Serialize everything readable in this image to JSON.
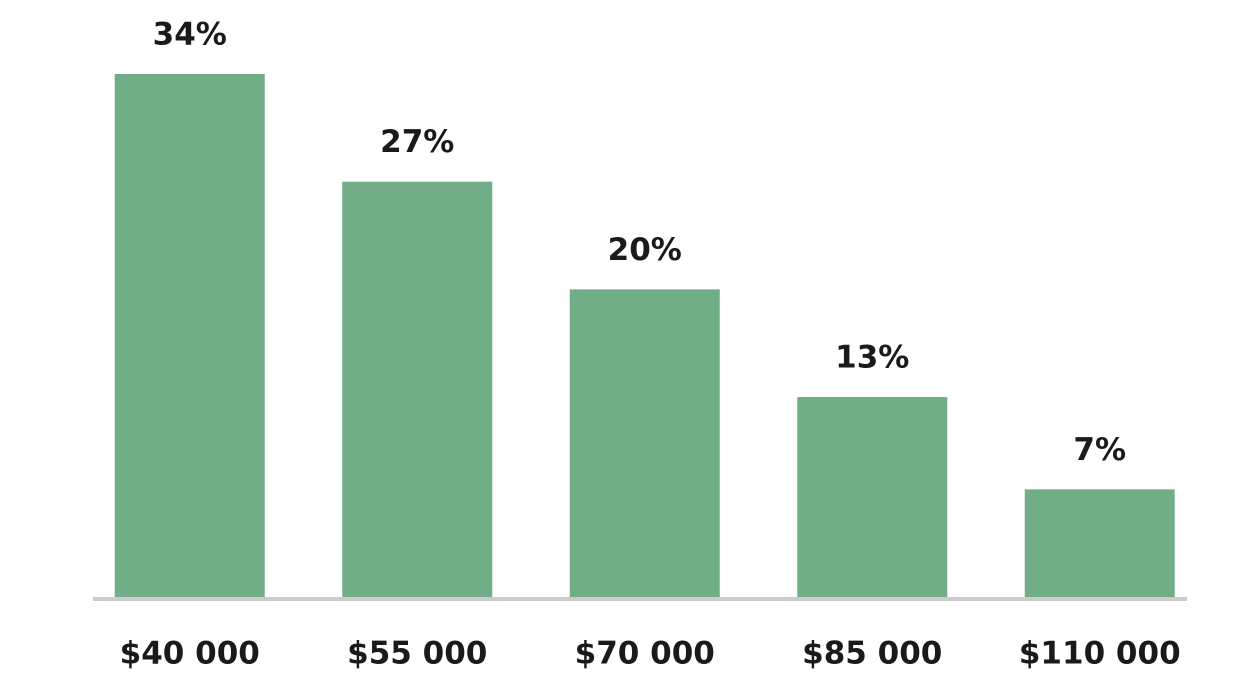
{
  "chart_data": {
    "type": "bar",
    "categories": [
      "$40 000",
      "$55 000",
      "$70 000",
      "$85 000",
      "$110 000"
    ],
    "values": [
      34,
      27,
      20,
      13,
      7
    ],
    "value_labels": [
      "34%",
      "27%",
      "20%",
      "13%",
      "7%"
    ],
    "color": "#71ae87"
  }
}
